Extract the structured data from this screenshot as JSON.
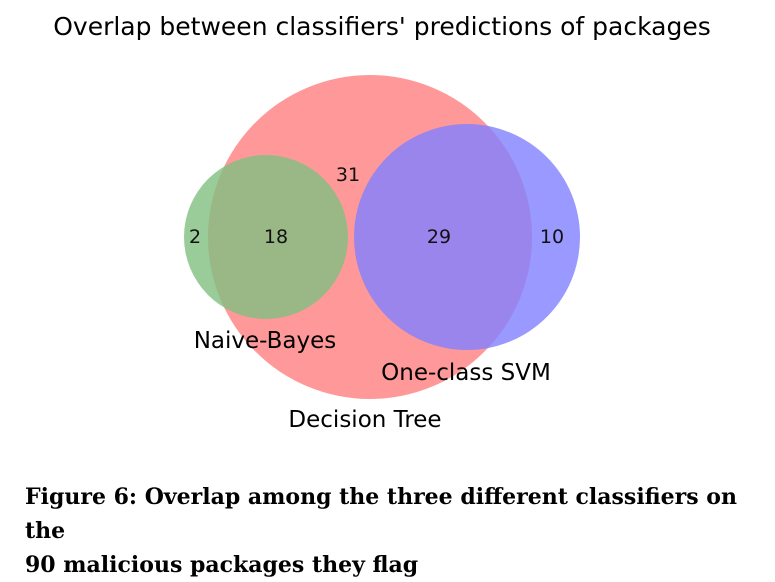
{
  "chart_data": {
    "type": "venn",
    "title": "Overlap between classifiers' predictions of packages",
    "sets": [
      {
        "name": "Naive-Bayes",
        "color": "#7fbf7f",
        "size": 20
      },
      {
        "name": "Decision Tree",
        "color": "#ff8080",
        "size": 78
      },
      {
        "name": "One-class SVM",
        "color": "#8080ff",
        "size": 39
      }
    ],
    "regions": {
      "naive_bayes_only": 2,
      "naive_bayes_and_decision_tree": 18,
      "decision_tree_only": 31,
      "decision_tree_and_one_class_svm": 29,
      "one_class_svm_only": 10
    },
    "total": 90
  },
  "caption": {
    "line1": "Figure 6: Overlap among the three different classifiers on the",
    "line2": "90 malicious packages they flag"
  }
}
